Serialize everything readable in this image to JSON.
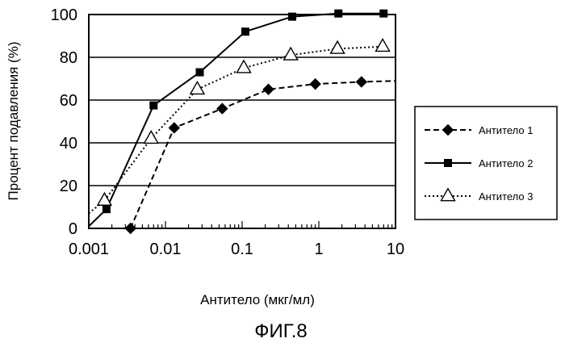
{
  "figure": {
    "caption": "ФИГ.8"
  },
  "chart_data": {
    "type": "line",
    "xlabel": "Антитело (мкг/мл)",
    "ylabel": "Процент подавления (%)",
    "xscale": "log",
    "xlim": [
      0.001,
      10
    ],
    "ylim": [
      0,
      100
    ],
    "xticks": [
      0.001,
      0.01,
      0.1,
      1,
      10
    ],
    "xtick_labels": [
      "0.001",
      "0.01",
      "0.1",
      "1",
      "10"
    ],
    "yticks": [
      0,
      20,
      40,
      60,
      80,
      100
    ],
    "ytick_labels": [
      "0",
      "20",
      "40",
      "60",
      "80",
      "100"
    ],
    "grid": "horizontal",
    "legend_position": "right",
    "series": [
      {
        "name": "Антитело 1",
        "line_style": "dashed",
        "marker": "diamond",
        "color": "#000000",
        "x": [
          0.0035,
          0.013,
          0.055,
          0.22,
          0.9,
          3.6
        ],
        "y": [
          0,
          47,
          56,
          65,
          67.5,
          68.5
        ],
        "line_x": [
          0.0035,
          0.013,
          0.055,
          0.22,
          0.9,
          3.6,
          10
        ],
        "line_y": [
          0,
          47,
          56,
          65,
          67.5,
          68.5,
          69
        ]
      },
      {
        "name": "Антитело 2",
        "line_style": "solid",
        "marker": "square",
        "color": "#000000",
        "x": [
          0.0017,
          0.007,
          0.028,
          0.11,
          0.45,
          1.8,
          7
        ],
        "y": [
          9,
          57.5,
          73,
          92,
          99,
          100.5,
          100.5
        ],
        "line_x": [
          0.001,
          0.0017,
          0.007,
          0.028,
          0.11,
          0.45,
          1.8,
          7
        ],
        "line_y": [
          1,
          9,
          57.5,
          73,
          92,
          99,
          100.5,
          100.5
        ]
      },
      {
        "name": "Антитело 3",
        "line_style": "dotted",
        "marker": "triangle-open",
        "color": "#000000",
        "x": [
          0.0016,
          0.0065,
          0.026,
          0.105,
          0.43,
          1.75,
          6.8
        ],
        "y": [
          13,
          42,
          65,
          75,
          81,
          84,
          85
        ],
        "line_x": [
          0.001,
          0.0016,
          0.0065,
          0.026,
          0.105,
          0.43,
          1.75,
          6.8
        ],
        "line_y": [
          7,
          13,
          42,
          65,
          75,
          81,
          84,
          85
        ]
      }
    ]
  }
}
